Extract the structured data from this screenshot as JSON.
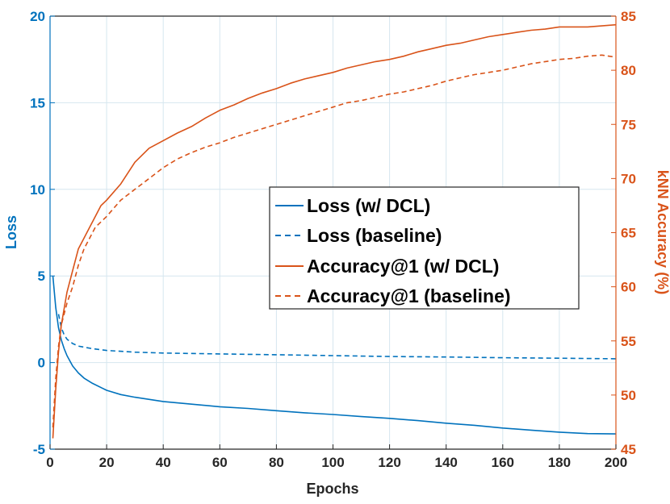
{
  "chart_data": {
    "type": "line",
    "xlabel": "Epochs",
    "ylabel_left": "Loss",
    "ylabel_right": "kNN Accuracy (%)",
    "xlim": [
      0,
      200
    ],
    "ylim_left": [
      -5,
      20
    ],
    "ylim_right": [
      45,
      85
    ],
    "x_ticks": [
      0,
      20,
      40,
      60,
      80,
      100,
      120,
      140,
      160,
      180,
      200
    ],
    "y_left_ticks": [
      -5,
      0,
      5,
      10,
      15,
      20
    ],
    "y_right_ticks": [
      45,
      50,
      55,
      60,
      65,
      70,
      75,
      80,
      85
    ],
    "grid": true,
    "legend_placement": "center-right",
    "colors": {
      "loss": "#0072BD",
      "accuracy": "#D95319",
      "grid": "#d6e6ef",
      "axis_left": "#0072BD",
      "axis_right": "#D95319"
    },
    "series": [
      {
        "name": "Loss (w/ DCL)",
        "axis": "left",
        "style": "solid",
        "color": "#0072BD",
        "x": [
          1,
          2,
          3,
          4,
          5,
          6,
          8,
          10,
          12,
          15,
          20,
          25,
          30,
          40,
          50,
          60,
          70,
          80,
          90,
          100,
          110,
          120,
          130,
          140,
          150,
          160,
          170,
          180,
          190,
          200
        ],
        "values": [
          5.0,
          3.2,
          2.0,
          1.3,
          0.8,
          0.4,
          -0.2,
          -0.6,
          -0.9,
          -1.2,
          -1.6,
          -1.85,
          -2.0,
          -2.25,
          -2.4,
          -2.55,
          -2.65,
          -2.78,
          -2.9,
          -3.0,
          -3.12,
          -3.22,
          -3.35,
          -3.5,
          -3.62,
          -3.78,
          -3.9,
          -4.02,
          -4.1,
          -4.12
        ]
      },
      {
        "name": "Loss (baseline)",
        "axis": "left",
        "style": "dashed",
        "color": "#0072BD",
        "x": [
          3,
          4,
          5,
          6,
          8,
          10,
          15,
          20,
          30,
          40,
          60,
          80,
          100,
          120,
          140,
          160,
          180,
          200
        ],
        "values": [
          2.8,
          2.0,
          1.6,
          1.35,
          1.1,
          0.95,
          0.8,
          0.7,
          0.6,
          0.55,
          0.5,
          0.45,
          0.4,
          0.35,
          0.32,
          0.28,
          0.25,
          0.22
        ]
      },
      {
        "name": "Accuracy@1 (w/ DCL)",
        "axis": "right",
        "style": "solid",
        "color": "#D95319",
        "x": [
          1,
          2,
          3,
          4,
          5,
          6,
          8,
          10,
          12,
          14,
          16,
          18,
          20,
          25,
          30,
          35,
          40,
          45,
          50,
          55,
          60,
          65,
          70,
          75,
          80,
          85,
          90,
          95,
          100,
          105,
          110,
          115,
          120,
          125,
          130,
          135,
          140,
          145,
          150,
          155,
          160,
          165,
          170,
          175,
          180,
          185,
          190,
          195,
          200
        ],
        "values": [
          46.0,
          50.5,
          54.0,
          56.5,
          58.0,
          59.5,
          61.5,
          63.5,
          64.5,
          65.5,
          66.5,
          67.5,
          68.0,
          69.5,
          71.5,
          72.8,
          73.5,
          74.2,
          74.8,
          75.6,
          76.3,
          76.8,
          77.4,
          77.9,
          78.3,
          78.8,
          79.2,
          79.5,
          79.8,
          80.2,
          80.5,
          80.8,
          81.0,
          81.3,
          81.7,
          82.0,
          82.3,
          82.5,
          82.8,
          83.1,
          83.3,
          83.5,
          83.7,
          83.8,
          84.0,
          84.0,
          84.0,
          84.1,
          84.2
        ]
      },
      {
        "name": "Accuracy@1 (baseline)",
        "axis": "right",
        "style": "dashed",
        "color": "#D95319",
        "x": [
          1,
          2,
          3,
          4,
          5,
          6,
          8,
          10,
          12,
          14,
          16,
          18,
          20,
          25,
          30,
          35,
          40,
          45,
          50,
          55,
          60,
          65,
          70,
          75,
          80,
          85,
          90,
          95,
          100,
          105,
          110,
          115,
          120,
          125,
          130,
          135,
          140,
          145,
          150,
          155,
          160,
          165,
          170,
          175,
          180,
          185,
          190,
          195,
          200
        ],
        "values": [
          47.0,
          51.5,
          54.5,
          56.5,
          57.5,
          58.5,
          60.0,
          62.0,
          63.5,
          64.5,
          65.5,
          66.0,
          66.5,
          68.0,
          69.0,
          70.0,
          71.0,
          71.8,
          72.4,
          72.9,
          73.3,
          73.8,
          74.2,
          74.6,
          75.0,
          75.4,
          75.8,
          76.2,
          76.6,
          77.0,
          77.2,
          77.5,
          77.8,
          78.0,
          78.3,
          78.6,
          79.0,
          79.3,
          79.6,
          79.8,
          80.0,
          80.3,
          80.6,
          80.8,
          81.0,
          81.1,
          81.3,
          81.4,
          81.2
        ]
      }
    ]
  }
}
